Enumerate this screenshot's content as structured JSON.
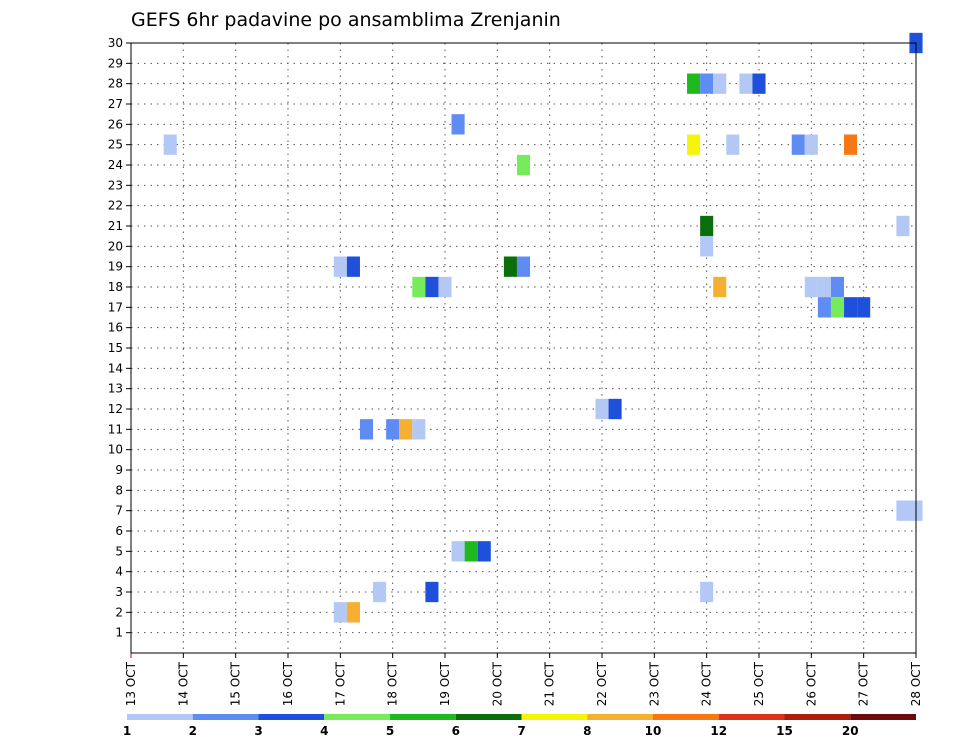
{
  "chart_data": {
    "type": "heatmap",
    "title": "GEFS 6hr padavine po ansamblima Zrenjanin",
    "xlabel": "",
    "ylabel": "",
    "x_tick_labels": [
      "13 OCT",
      "14 OCT",
      "15 OCT",
      "16 OCT",
      "17 OCT",
      "18 OCT",
      "19 OCT",
      "20 OCT",
      "21 OCT",
      "22 OCT",
      "23 OCT",
      "24 OCT",
      "25 OCT",
      "26 OCT",
      "27 OCT",
      "28 OCT"
    ],
    "xlim": [
      0,
      15
    ],
    "y_tick_labels": [
      "1",
      "2",
      "3",
      "4",
      "5",
      "6",
      "7",
      "8",
      "9",
      "10",
      "11",
      "12",
      "13",
      "14",
      "15",
      "16",
      "17",
      "18",
      "19",
      "20",
      "21",
      "22",
      "23",
      "24",
      "25",
      "26",
      "27",
      "28",
      "29",
      "30"
    ],
    "ylim": [
      0,
      30
    ],
    "grid": true,
    "colorbar": {
      "placement": "bottom",
      "labels": [
        "1",
        "2",
        "3",
        "4",
        "5",
        "6",
        "7",
        "8",
        "10",
        "12",
        "15",
        "20"
      ],
      "colors": [
        "#b4c8f5",
        "#5f8cf2",
        "#1e50dc",
        "#78eb5a",
        "#1eb91e",
        "#0a6e0a",
        "#f5f50a",
        "#f5af32",
        "#f57814",
        "#dc3219",
        "#aa1e0a",
        "#6e0a0a"
      ]
    },
    "cells": [
      {
        "member": 30,
        "day": 15.0,
        "cls": 2
      },
      {
        "member": 28,
        "day": 10.75,
        "cls": 4
      },
      {
        "member": 28,
        "day": 11.0,
        "cls": 1
      },
      {
        "member": 28,
        "day": 11.25,
        "cls": 0
      },
      {
        "member": 28,
        "day": 11.75,
        "cls": 0
      },
      {
        "member": 28,
        "day": 12.0,
        "cls": 2
      },
      {
        "member": 26,
        "day": 6.25,
        "cls": 1
      },
      {
        "member": 25,
        "day": 0.75,
        "cls": 0
      },
      {
        "member": 25,
        "day": 10.75,
        "cls": 6
      },
      {
        "member": 25,
        "day": 11.5,
        "cls": 0
      },
      {
        "member": 25,
        "day": 12.75,
        "cls": 1
      },
      {
        "member": 25,
        "day": 13.0,
        "cls": 0
      },
      {
        "member": 25,
        "day": 13.75,
        "cls": 8
      },
      {
        "member": 24,
        "day": 7.5,
        "cls": 3
      },
      {
        "member": 21,
        "day": 11.0,
        "cls": 5
      },
      {
        "member": 21,
        "day": 14.75,
        "cls": 0
      },
      {
        "member": 20,
        "day": 11.0,
        "cls": 0
      },
      {
        "member": 19,
        "day": 4.0,
        "cls": 0
      },
      {
        "member": 19,
        "day": 4.25,
        "cls": 2
      },
      {
        "member": 19,
        "day": 7.25,
        "cls": 5
      },
      {
        "member": 19,
        "day": 7.5,
        "cls": 1
      },
      {
        "member": 18,
        "day": 5.5,
        "cls": 3
      },
      {
        "member": 18,
        "day": 5.75,
        "cls": 2
      },
      {
        "member": 18,
        "day": 6.0,
        "cls": 0
      },
      {
        "member": 18,
        "day": 11.25,
        "cls": 7
      },
      {
        "member": 18,
        "day": 13.0,
        "cls": 0
      },
      {
        "member": 18,
        "day": 13.25,
        "cls": 0
      },
      {
        "member": 18,
        "day": 13.5,
        "cls": 1
      },
      {
        "member": 17,
        "day": 13.25,
        "cls": 1
      },
      {
        "member": 17,
        "day": 13.5,
        "cls": 3
      },
      {
        "member": 17,
        "day": 13.75,
        "cls": 2
      },
      {
        "member": 17,
        "day": 14.0,
        "cls": 2
      },
      {
        "member": 12,
        "day": 9.0,
        "cls": 0
      },
      {
        "member": 12,
        "day": 9.25,
        "cls": 2
      },
      {
        "member": 11,
        "day": 4.5,
        "cls": 1
      },
      {
        "member": 11,
        "day": 5.0,
        "cls": 1
      },
      {
        "member": 11,
        "day": 5.25,
        "cls": 7
      },
      {
        "member": 11,
        "day": 5.5,
        "cls": 0
      },
      {
        "member": 7,
        "day": 14.75,
        "cls": 0
      },
      {
        "member": 7,
        "day": 15.0,
        "cls": 0
      },
      {
        "member": 5,
        "day": 6.25,
        "cls": 0
      },
      {
        "member": 5,
        "day": 6.5,
        "cls": 4
      },
      {
        "member": 5,
        "day": 6.75,
        "cls": 2
      },
      {
        "member": 3,
        "day": 4.75,
        "cls": 0
      },
      {
        "member": 3,
        "day": 5.75,
        "cls": 2
      },
      {
        "member": 3,
        "day": 11.0,
        "cls": 0
      },
      {
        "member": 2,
        "day": 4.0,
        "cls": 0
      },
      {
        "member": 2,
        "day": 4.25,
        "cls": 7
      }
    ]
  }
}
